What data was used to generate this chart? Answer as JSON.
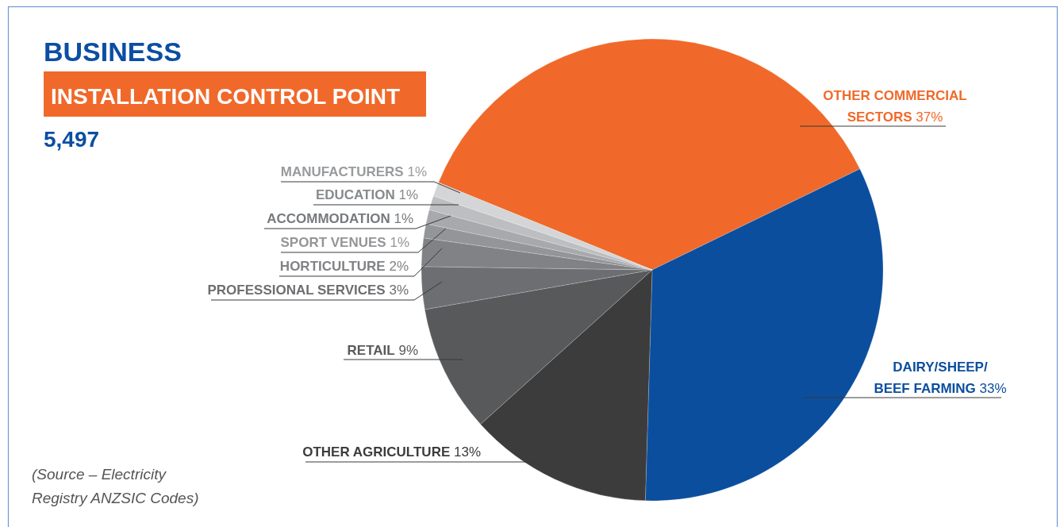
{
  "chart_data": {
    "type": "pie",
    "title": "BUSINESS",
    "subtitle": "INSTALLATION CONTROL POINT",
    "categories": [
      "OTHER COMMERCIAL SECTORS",
      "DAIRY/SHEEP/BEEF FARMING",
      "OTHER AGRICULTURE",
      "RETAIL",
      "PROFESSIONAL SERVICES",
      "HORTICULTURE",
      "SPORT VENUES",
      "ACCOMMODATION",
      "EDUCATION",
      "MANUFACTURERS"
    ],
    "values": [
      37,
      33,
      13,
      9,
      3,
      2,
      1,
      1,
      1,
      1
    ],
    "value_labels": [
      "37%",
      "33%",
      "13%",
      "9%",
      "3%",
      "2%",
      "1%",
      "1%",
      "1%",
      "1%"
    ],
    "colors": [
      "#f0692a",
      "#0b4e9e",
      "#3c3c3c",
      "#58595b",
      "#6d6e71",
      "#808285",
      "#939598",
      "#a7a9ac",
      "#bcbec0",
      "#d4d5d6"
    ],
    "annotations": [
      "5,497",
      "(Source – Electricity Registry ANZSIC Codes)"
    ]
  }
}
